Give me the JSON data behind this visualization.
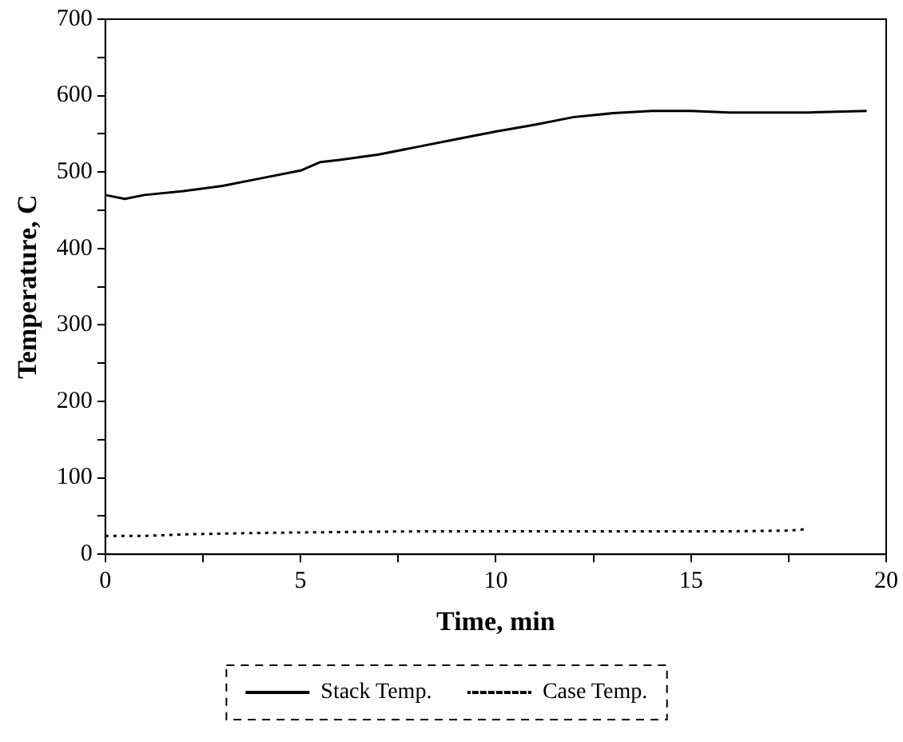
{
  "chart_data": {
    "type": "line",
    "xlabel": "Time, min",
    "ylabel": "Temperature, C",
    "xlim": [
      0,
      20
    ],
    "xticks": [
      0,
      {
        "value": 2.5,
        "label": null
      },
      5,
      {
        "value": 7.5,
        "label": null
      },
      10,
      {
        "value": 12.5,
        "label": null
      },
      15,
      {
        "value": 17.5,
        "label": null
      },
      20
    ],
    "ylim": [
      0,
      700
    ],
    "yticks": [
      0,
      {
        "value": 50,
        "label": null
      },
      100,
      {
        "value": 150,
        "label": null
      },
      200,
      {
        "value": 250,
        "label": null
      },
      300,
      {
        "value": 350,
        "label": null
      },
      400,
      {
        "value": 450,
        "label": null
      },
      500,
      {
        "value": 550,
        "label": null
      },
      600,
      {
        "value": 650,
        "label": null
      },
      700
    ],
    "grid": false,
    "legend": "bottom",
    "marker": "none",
    "series": [
      {
        "name": "Stack Temp.",
        "color": "#000000",
        "line_style": "solid",
        "x": [
          0,
          0.5,
          1,
          2,
          3,
          4,
          5,
          5.5,
          6,
          7,
          8,
          9,
          10,
          11,
          12,
          13,
          14,
          15,
          16,
          17,
          18,
          19.5
        ],
        "values": [
          470,
          465,
          470,
          475,
          482,
          492,
          502,
          513,
          516,
          523,
          533,
          543,
          553,
          562,
          572,
          577,
          580,
          580,
          578,
          578,
          578,
          580
        ]
      },
      {
        "name": "Case Temp.",
        "color": "#000000",
        "line_style": "dotted",
        "x": [
          0,
          1,
          2,
          4,
          6,
          8,
          10,
          12,
          14,
          16,
          17.5,
          18
        ],
        "values": [
          24,
          24,
          26,
          28,
          29,
          30,
          30,
          30,
          30,
          30,
          31,
          33
        ]
      }
    ]
  }
}
